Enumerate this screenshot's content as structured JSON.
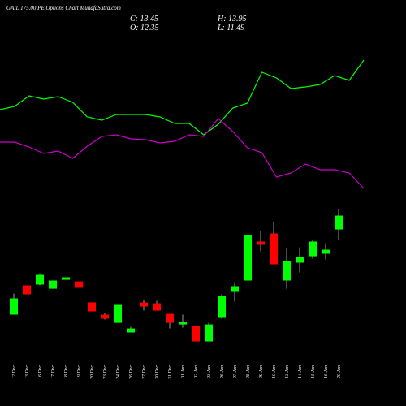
{
  "header": {
    "title": "GAIL 175.00 PE Options Chart MunafaSutra.com",
    "close": "C: 13.45",
    "high": "H: 13.95",
    "open": "O: 12.35",
    "low": "L: 11.49"
  },
  "chart_data": [
    {
      "type": "line",
      "ylim": [
        0,
        190
      ],
      "series": [
        {
          "color": "#00ff00",
          "values": [
            115,
            119,
            132,
            128,
            131,
            124,
            106,
            102,
            109,
            109,
            109,
            106,
            98,
            98,
            84,
            97,
            117,
            123,
            161,
            154,
            141,
            143,
            146,
            157,
            151,
            176
          ]
        },
        {
          "color": "#cc00cc",
          "values": [
            75,
            75,
            69,
            61,
            64,
            55,
            70,
            82,
            84,
            79,
            78,
            74,
            76,
            84,
            82,
            104,
            88,
            68,
            62,
            32,
            37,
            48,
            41,
            41,
            37,
            18
          ]
        }
      ]
    },
    {
      "type": "candlestick",
      "ylim": [
        0,
        16
      ],
      "up_color": "#00ff00",
      "down_color": "#ff0000",
      "categories": [
        "12 Dec",
        "13 Dec",
        "16 Dec",
        "17 Dec",
        "18 Dec",
        "19 Dec",
        "20 Dec",
        "23 Dec",
        "24 Dec",
        "26 Dec",
        "27 Dec",
        "30 Dec",
        "31 Dec",
        "01 Jan",
        "02 Jan",
        "03 Jan",
        "06 Jan",
        "07 Jan",
        "08 Jan",
        "09 Jan",
        "10 Jan",
        "13 Jan",
        "14 Jan",
        "15 Jan",
        "16 Jan",
        "20 Jan"
      ],
      "open": [
        5.58,
        7.9,
        7.97,
        7.64,
        8.35,
        8.22,
        6.55,
        5.58,
        4.93,
        4.16,
        6.55,
        6.48,
        5.64,
        4.8,
        4.68,
        3.45,
        5.32,
        7.45,
        8.29,
        11.39,
        12.03,
        8.29,
        9.71,
        10.22,
        10.42,
        12.35
      ],
      "high": [
        7.26,
        7.9,
        8.87,
        8.29,
        8.55,
        8.22,
        6.55,
        5.71,
        6.35,
        4.61,
        6.74,
        6.68,
        5.64,
        5.58,
        4.68,
        4.93,
        7.19,
        8.16,
        11.9,
        12.22,
        12.93,
        10.87,
        10.93,
        11.51,
        11.26,
        13.95
      ],
      "low": [
        5.58,
        7.19,
        7.9,
        7.64,
        8.35,
        7.71,
        5.84,
        5.19,
        4.93,
        4.16,
        5.9,
        5.9,
        4.48,
        4.55,
        3.45,
        3.45,
        5.26,
        6.61,
        8.29,
        10.61,
        9.58,
        7.64,
        8.93,
        10.03,
        9.97,
        11.49
      ],
      "close": [
        6.87,
        7.19,
        8.74,
        8.29,
        8.55,
        7.71,
        5.84,
        5.26,
        6.35,
        4.48,
        6.22,
        5.9,
        4.93,
        5.0,
        3.45,
        4.8,
        7.06,
        7.84,
        11.9,
        11.13,
        9.58,
        9.84,
        10.16,
        11.39,
        10.74,
        13.45
      ]
    }
  ]
}
